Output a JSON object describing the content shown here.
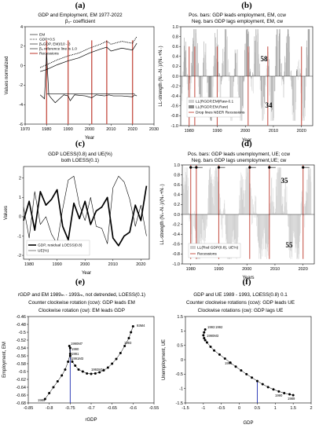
{
  "chart_data": [
    {
      "id": "a",
      "letter": "(a)",
      "type": "line",
      "title": "GDP and Employment, EM 1977-2022",
      "subtitle": "β₀- coefficient",
      "xlabel": "Year",
      "ylabel": "Values normalized",
      "xlim": [
        1970,
        2030
      ],
      "ylim": [
        -6,
        4
      ],
      "xticks": [
        1970,
        1980,
        1990,
        2000,
        2010,
        2020,
        2030
      ],
      "yticks": [
        -6,
        -4,
        -2,
        0,
        2,
        4
      ],
      "legend_position": "top-left",
      "legend": [
        "EM",
        "GDP+0.5",
        "β₀GDP, EM)/10 - 3",
        "β₀ reference line is 1.0",
        "Recessions"
      ],
      "series": [
        {
          "name": "EM",
          "style": "solid",
          "x": [
            1977,
            1980,
            1985,
            1990,
            1995,
            2000,
            2005,
            2008,
            2010,
            2015,
            2020,
            2022
          ],
          "values": [
            -0.6,
            -0.4,
            0.1,
            0.5,
            0.8,
            1.3,
            1.7,
            1.9,
            1.5,
            1.8,
            1.6,
            2.3
          ]
        },
        {
          "name": "GDP+0.5",
          "style": "dotted",
          "x": [
            1977,
            1980,
            1985,
            1990,
            1995,
            2000,
            2005,
            2008,
            2010,
            2015,
            2020,
            2022
          ],
          "values": [
            -0.2,
            0.1,
            0.6,
            1.0,
            1.3,
            1.8,
            2.2,
            2.5,
            2.2,
            2.5,
            2.3,
            3.0
          ]
        },
        {
          "name": "β₀GDP, EM)/10 - 3",
          "style": "solid",
          "x": [
            1977,
            1979,
            1980,
            1981,
            1982,
            1984,
            1988,
            1990,
            1991,
            1993,
            1998,
            2001,
            2003,
            2007,
            2009,
            2011,
            2015,
            2020,
            2021,
            2022
          ],
          "values": [
            -3.0,
            -3.4,
            1.3,
            -3.0,
            -3.3,
            -3.8,
            -3.0,
            -3.1,
            -3.6,
            -3.0,
            -3.1,
            -3.3,
            -3.0,
            -3.1,
            -3.0,
            -3.1,
            -3.1,
            -3.2,
            -3.0,
            -3.1
          ]
        },
        {
          "name": "β₀ reference line is 1.0",
          "style": "solid",
          "x": [
            1980,
            2021
          ],
          "values": [
            -2.9,
            -2.9
          ]
        }
      ],
      "recessions": [
        1980,
        1990,
        2001,
        2008,
        2020
      ]
    },
    {
      "id": "b",
      "letter": "(b)",
      "type": "bar",
      "title": "Pos. bars: GDP leads employment, EM, ccw",
      "subtitle": "Neg. bars GDP lags employment, EM, cw",
      "xlabel": "Year",
      "ylabel": "LL-strength (N₊-N₋)/(N₊+N₋)",
      "xlim": [
        1977,
        2024
      ],
      "ylim": [
        -1,
        1
      ],
      "xticks": [
        1980,
        1990,
        2000,
        2010,
        2020
      ],
      "yticks": [
        -1.0,
        -0.8,
        -0.6,
        -0.4,
        -0.2,
        0.0,
        0.2,
        0.4,
        0.6,
        0.8,
        1.0
      ],
      "count_pos": "58",
      "count_neg": "34",
      "legend_position": "bottom-left",
      "legend": [
        "LL(RGDP,EM)Raw-0.1",
        "LL(RGDP,EM,Raw)",
        "Drop lines NBER Recessions"
      ],
      "recessions": [
        1980,
        1982,
        1990,
        2001,
        2008,
        2020
      ]
    },
    {
      "id": "c",
      "letter": "(c)",
      "type": "line",
      "title": "GDP LOESS(0.8) and UE(%)",
      "subtitle": "both LOESS(0.1)",
      "xlabel": "Year",
      "ylabel": "Values",
      "xlim": [
        1978,
        2023
      ],
      "ylim": [
        -2.2,
        2.6
      ],
      "xticks": [
        1980,
        1990,
        2000,
        2010,
        2020
      ],
      "yticks": [
        -2,
        -1,
        0,
        1,
        2
      ],
      "legend_position": "bottom-left",
      "legend": [
        "GDP, residual LOESS(0.8)",
        "UE(%)"
      ],
      "series": [
        {
          "name": "GDP, residual LOESS(0.8)",
          "style": "thick",
          "x": [
            1978,
            1980,
            1982,
            1984,
            1986,
            1988,
            1990,
            1992,
            1994,
            1996,
            1998,
            2000,
            2002,
            2004,
            2006,
            2008,
            2010,
            2012,
            2014,
            2016,
            2018,
            2020,
            2022
          ],
          "values": [
            -0.2,
            0.8,
            -0.7,
            1.3,
            0.6,
            0.9,
            1.4,
            -0.5,
            -1.2,
            0.7,
            -0.1,
            0.8,
            -0.4,
            0.3,
            0.5,
            1.0,
            -1.1,
            -1.5,
            -1.0,
            -0.8,
            0.6,
            -0.2,
            1.6
          ]
        },
        {
          "name": "UE(%)",
          "style": "thin",
          "x": [
            1978,
            1980,
            1982,
            1984,
            1986,
            1988,
            1990,
            1992,
            1994,
            1996,
            1998,
            2000,
            2002,
            2004,
            2006,
            2008,
            2010,
            2012,
            2014,
            2016,
            2018,
            2020,
            2022
          ],
          "values": [
            0.5,
            -1.1,
            1.3,
            -0.4,
            0.0,
            -0.9,
            -1.4,
            0.4,
            1.9,
            2.1,
            0.6,
            -0.2,
            1.0,
            -0.5,
            -0.6,
            -1.4,
            1.5,
            2.1,
            1.8,
            0.9,
            -0.5,
            0.6,
            -1.0
          ]
        }
      ]
    },
    {
      "id": "d",
      "letter": "(d)",
      "type": "bar",
      "title": "Pos. bars: GDP leads unemployment, UE; ccw",
      "subtitle": "Neg. bars GDP lags unemployment,UE; cw",
      "xlabel": "Years",
      "ylabel": "LL-strength (N₊-N₋)/(N₊+N₋)",
      "xlim": [
        1977,
        2024
      ],
      "ylim": [
        -1,
        1
      ],
      "xticks": [
        1980,
        1990,
        2000,
        2010,
        2020
      ],
      "yticks": [
        -1.0,
        -0.8,
        -0.6,
        -0.4,
        -0.2,
        0.0,
        0.2,
        0.4,
        0.6,
        0.8,
        1.0
      ],
      "count_pos": "35",
      "count_neg": "55",
      "legend_position": "bottom-left",
      "legend": [
        "LL(Rsd GDP(0.8), UE%)",
        "Recessions"
      ],
      "recessions": [
        1980,
        1982,
        1990,
        2001,
        2008,
        2020
      ]
    },
    {
      "id": "e",
      "letter": "(e)",
      "type": "scatter",
      "title": "rGDP and EM 1989ₘ - 1993ₘ, not detrended, LOESS(0.1)",
      "subtitle": "Counter clockwise rotation (ccw): GDP leads EM",
      "subtitle2": "Clockwise rotation (cw): EM leads GDP",
      "xlabel": "rGDP",
      "ylabel": "Employment, EM",
      "xlim": [
        -0.85,
        -0.55
      ],
      "ylim": [
        -0.68,
        -0.46
      ],
      "xticks": [
        -0.85,
        -0.8,
        -0.75,
        -0.7,
        -0.65,
        -0.6,
        -0.55
      ],
      "yticks": [
        -0.68,
        -0.66,
        -0.64,
        -0.62,
        -0.6,
        -0.58,
        -0.56,
        -0.54,
        -0.52,
        -0.5,
        -0.48,
        -0.46
      ],
      "annotations": [
        "1990M7",
        "1990",
        "1991",
        "1991M3",
        "1992M11",
        "1993",
        "93M4",
        "1989"
      ],
      "x": [
        -0.81,
        -0.8,
        -0.79,
        -0.78,
        -0.77,
        -0.762,
        -0.755,
        -0.75,
        -0.75,
        -0.752,
        -0.75,
        -0.745,
        -0.738,
        -0.73,
        -0.72,
        -0.71,
        -0.7,
        -0.69,
        -0.68,
        -0.67,
        -0.66,
        -0.65,
        -0.64,
        -0.63,
        -0.62,
        -0.61,
        -0.605,
        -0.6
      ],
      "y": [
        -0.67,
        -0.655,
        -0.64,
        -0.625,
        -0.61,
        -0.595,
        -0.575,
        -0.555,
        -0.54,
        -0.535,
        -0.56,
        -0.575,
        -0.585,
        -0.595,
        -0.6,
        -0.605,
        -0.606,
        -0.605,
        -0.602,
        -0.597,
        -0.59,
        -0.58,
        -0.568,
        -0.553,
        -0.535,
        -0.515,
        -0.5,
        -0.485
      ]
    },
    {
      "id": "f",
      "letter": "(f)",
      "type": "scatter",
      "title": "GDP and UE 1989 - 1993, LOESS(0.8) 0.1",
      "subtitle": "Counter clockwise rotations (ccw): GDP leads UE",
      "subtitle2": "Clockwise rotations (cw): GDP lags UE",
      "xlabel": "GDP",
      "ylabel": "Unemployment, UE",
      "xlim": [
        -1.5,
        2
      ],
      "ylim": [
        -1.5,
        1.5
      ],
      "xticks": [
        -1.5,
        -1,
        -0.5,
        0,
        0.5,
        1,
        1.5,
        2
      ],
      "yticks": [
        -1.5,
        -1,
        -0.5,
        0,
        0.5,
        1,
        1.5
      ],
      "annotations": [
        "1993",
        "1992",
        "1990M3",
        "1991",
        "1990",
        "1989"
      ],
      "x": [
        -0.95,
        -0.98,
        -1.0,
        -0.98,
        -0.95,
        -0.9,
        -0.8,
        -0.7,
        -0.55,
        -0.4,
        -0.25,
        -0.1,
        0.05,
        0.2,
        0.35,
        0.5,
        0.65,
        0.8,
        0.95,
        1.1,
        1.25,
        1.4,
        1.5
      ],
      "y": [
        1.05,
        0.95,
        0.85,
        0.75,
        0.68,
        0.6,
        0.45,
        0.32,
        0.18,
        0.04,
        -0.1,
        -0.24,
        -0.37,
        -0.5,
        -0.62,
        -0.74,
        -0.85,
        -0.95,
        -1.03,
        -1.1,
        -1.16,
        -1.2,
        -1.23
      ]
    }
  ]
}
